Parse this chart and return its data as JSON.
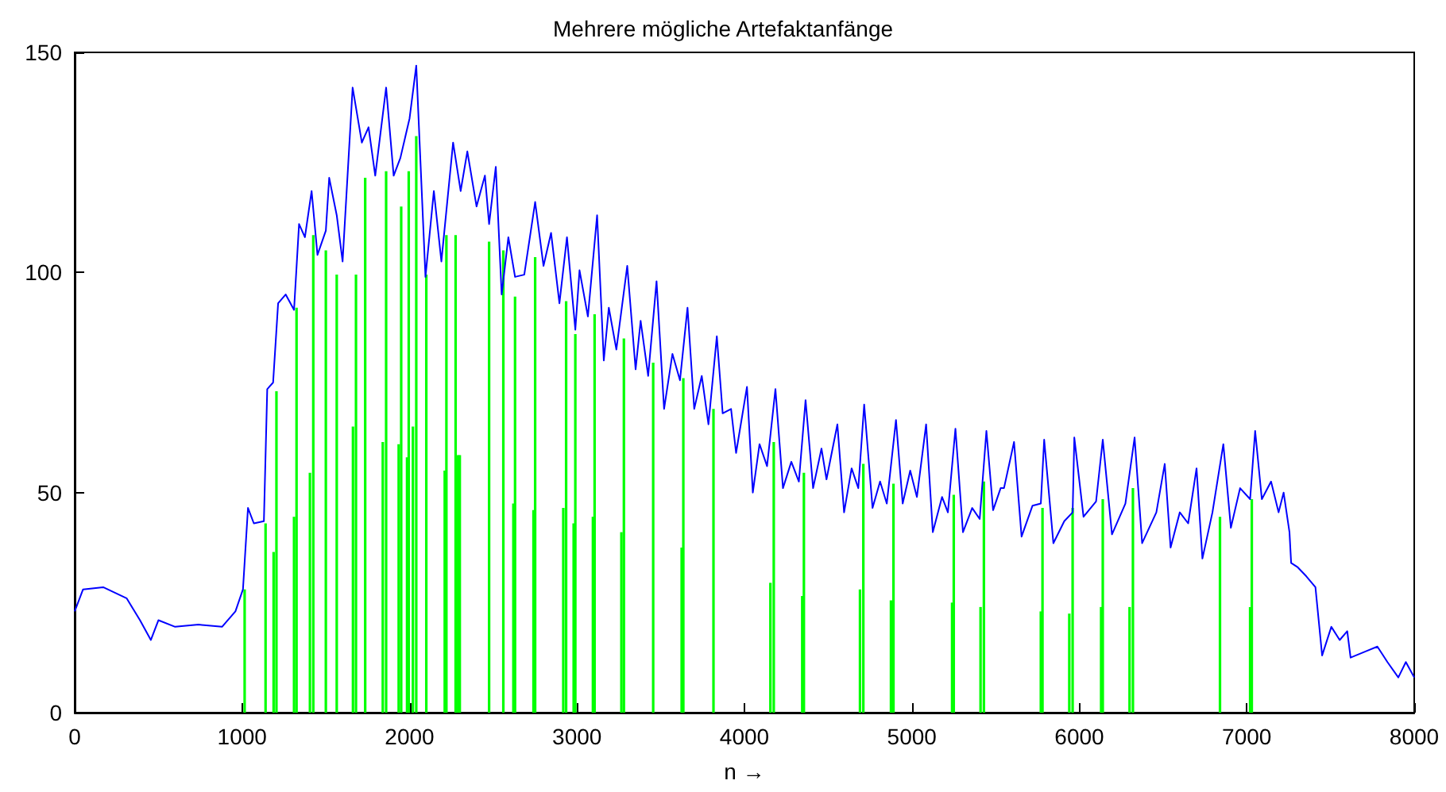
{
  "chart_data": {
    "type": "line",
    "title": "Mehrere mögliche Artefaktanfänge",
    "xlabel": "n →",
    "xlim": [
      0,
      8000
    ],
    "xticks": [
      0,
      1000,
      2000,
      3000,
      4000,
      5000,
      6000,
      7000,
      8000
    ],
    "ylim": [
      0,
      150
    ],
    "yticks": [
      0,
      50,
      100,
      150
    ],
    "grid": false,
    "marker": "none",
    "line_style": "solid",
    "series": [
      {
        "type": "bar",
        "color": "#00ff00",
        "x": [
          1015,
          1140,
          1188,
          1205,
          1310,
          1325,
          1405,
          1425,
          1500,
          1565,
          1662,
          1680,
          1735,
          1840,
          1860,
          1935,
          1950,
          1985,
          1995,
          2020,
          2040,
          2100,
          2210,
          2220,
          2275,
          2290,
          2300,
          2475,
          2560,
          2620,
          2630,
          2740,
          2750,
          2918,
          2935,
          2980,
          2990,
          3095,
          3105,
          3265,
          3280,
          3455,
          3625,
          3635,
          3815,
          4155,
          4175,
          4345,
          4355,
          4690,
          4710,
          4875,
          4890,
          5240,
          5250,
          5410,
          5430,
          5770,
          5780,
          5940,
          5960,
          6130,
          6140,
          6300,
          6320,
          6840,
          7020,
          7030
        ],
        "values": [
          28,
          43,
          36.5,
          73,
          44.5,
          92,
          54.5,
          108.5,
          105,
          99.5,
          65,
          99.5,
          121.5,
          61.5,
          123,
          61,
          115,
          58,
          123,
          65,
          131,
          99.5,
          55,
          108.5,
          108.5,
          58.5,
          58.5,
          107,
          105,
          47.5,
          94.5,
          46,
          103.5,
          46.5,
          93.5,
          43,
          86,
          44.5,
          90.5,
          41,
          85,
          79.5,
          37.5,
          76,
          69,
          29.5,
          61.5,
          26.5,
          54.5,
          28,
          56.5,
          25.5,
          52,
          25,
          49.5,
          24,
          52.5,
          23,
          46.5,
          22.5,
          46.5,
          24,
          48.5,
          24,
          51,
          44.5,
          24,
          48.5
        ]
      },
      {
        "color": "#0000ff",
        "x": [
          0,
          50,
          170,
          310,
          390,
          455,
          500,
          600,
          740,
          880,
          960,
          1005,
          1035,
          1070,
          1130,
          1150,
          1185,
          1215,
          1260,
          1310,
          1340,
          1375,
          1415,
          1450,
          1500,
          1520,
          1565,
          1600,
          1660,
          1715,
          1755,
          1795,
          1860,
          1905,
          1945,
          2000,
          2040,
          2095,
          2145,
          2190,
          2260,
          2305,
          2345,
          2400,
          2450,
          2475,
          2515,
          2550,
          2590,
          2630,
          2685,
          2750,
          2800,
          2845,
          2895,
          2940,
          2990,
          3015,
          3065,
          3120,
          3160,
          3190,
          3235,
          3300,
          3350,
          3380,
          3425,
          3475,
          3520,
          3570,
          3615,
          3660,
          3700,
          3745,
          3785,
          3835,
          3870,
          3920,
          3950,
          4015,
          4050,
          4090,
          4135,
          4185,
          4230,
          4280,
          4325,
          4365,
          4410,
          4460,
          4490,
          4555,
          4595,
          4640,
          4680,
          4715,
          4765,
          4810,
          4850,
          4905,
          4945,
          4990,
          5030,
          5085,
          5125,
          5180,
          5215,
          5260,
          5305,
          5360,
          5405,
          5445,
          5485,
          5530,
          5550,
          5610,
          5655,
          5720,
          5770,
          5790,
          5845,
          5910,
          5960,
          5970,
          6025,
          6100,
          6140,
          6195,
          6275,
          6330,
          6375,
          6460,
          6510,
          6545,
          6600,
          6650,
          6700,
          6735,
          6795,
          6860,
          6905,
          6960,
          7020,
          7050,
          7090,
          7145,
          7190,
          7220,
          7255,
          7265,
          7305,
          7355,
          7410,
          7450,
          7505,
          7555,
          7600,
          7620,
          7715,
          7780,
          7840,
          7905,
          7950,
          8000
        ],
        "values": [
          23,
          28,
          28.5,
          26,
          21,
          16.5,
          21,
          19.5,
          20,
          19.5,
          23,
          28,
          46.5,
          43,
          43.5,
          73.5,
          75,
          93,
          95,
          91.5,
          111,
          108,
          118.5,
          104,
          109.5,
          121.5,
          113,
          102.5,
          142,
          129.5,
          133,
          122,
          142,
          122,
          126,
          135,
          147,
          99,
          118.5,
          102.5,
          129.5,
          118.5,
          127.5,
          115,
          122,
          111,
          124,
          95,
          108,
          99,
          99.5,
          116,
          101.5,
          109,
          93,
          108,
          87,
          100.5,
          90,
          113,
          80,
          92,
          82.5,
          101.5,
          78,
          89,
          76.5,
          98,
          69,
          81.5,
          75.5,
          92,
          69,
          76.5,
          65.5,
          85.5,
          68,
          69,
          59,
          74,
          50,
          61,
          56,
          73.5,
          51,
          57,
          52.5,
          71,
          51,
          60,
          53,
          65.5,
          45.5,
          55.5,
          51,
          70,
          46.5,
          52.5,
          47.5,
          66.5,
          47.5,
          55,
          49,
          65.5,
          41,
          49,
          45.5,
          64.5,
          41,
          46.5,
          44,
          64,
          46,
          51,
          51,
          61.5,
          40,
          47,
          47.5,
          62,
          38.5,
          43.5,
          45.5,
          62.5,
          44.5,
          48,
          62,
          40.5,
          47.5,
          62.5,
          38.5,
          45.5,
          56.5,
          37.5,
          45.5,
          43,
          55.5,
          35,
          45.5,
          61,
          42,
          51,
          48.5,
          64,
          48.5,
          52.5,
          45.5,
          50,
          41,
          34,
          33,
          31,
          28.5,
          13,
          19.5,
          16.5,
          18.5,
          12.5,
          14,
          15,
          11.5,
          8,
          11.5,
          8
        ]
      }
    ]
  }
}
